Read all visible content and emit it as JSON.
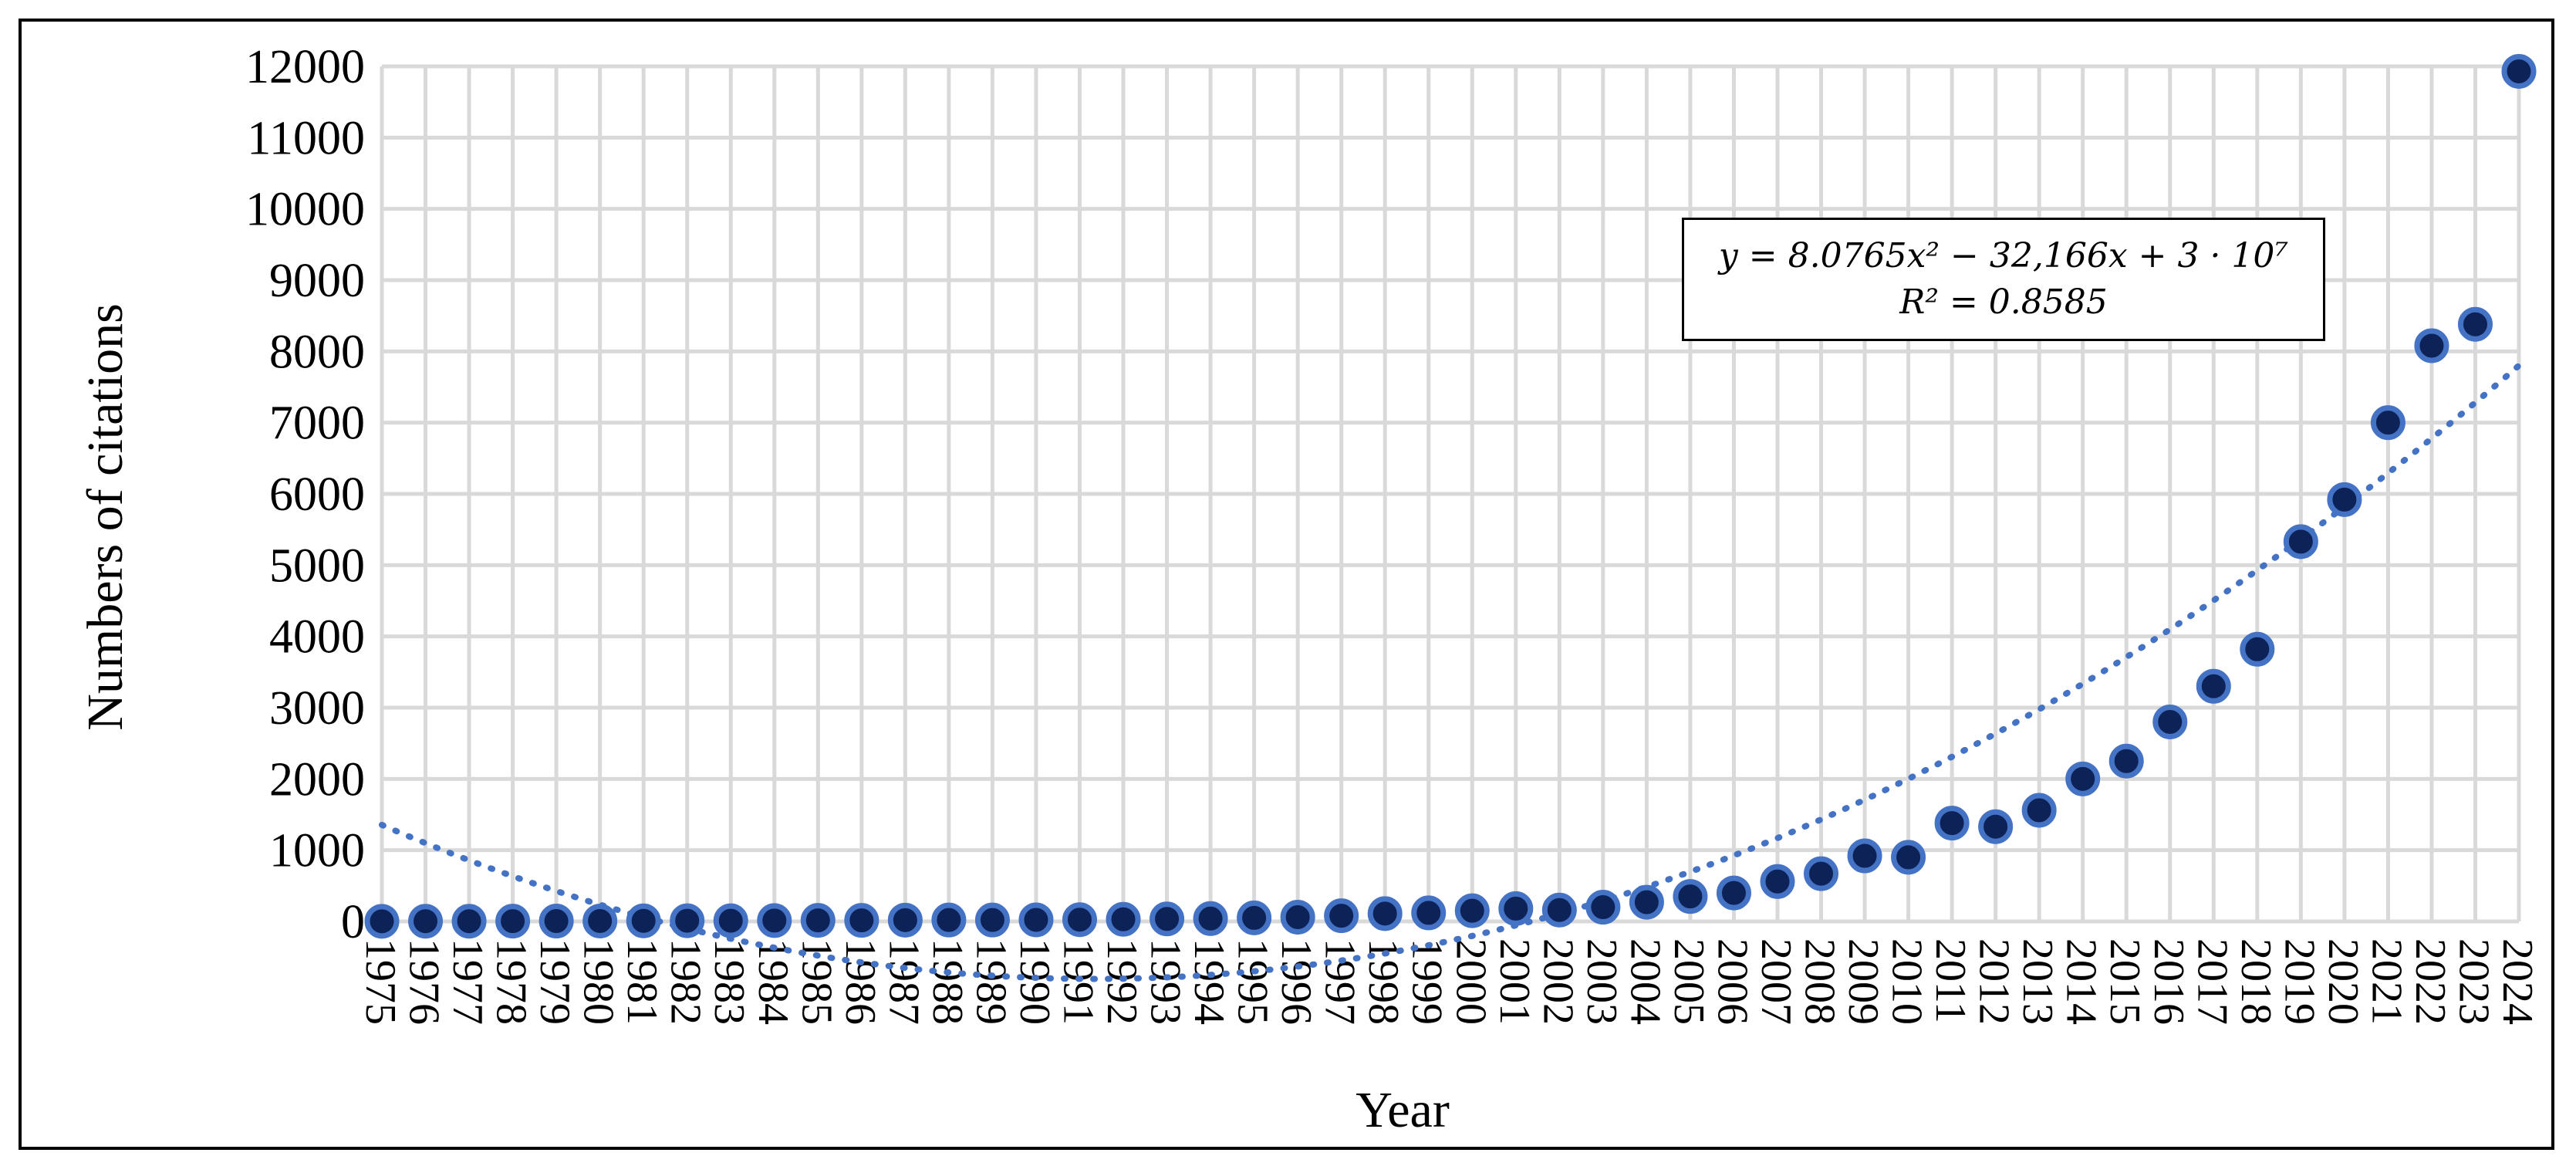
{
  "chart_data": {
    "type": "scatter",
    "xlabel": "Year",
    "ylabel": "Numbers of citations",
    "ylim": [
      0,
      12000
    ],
    "yticks": [
      0,
      1000,
      2000,
      3000,
      4000,
      5000,
      6000,
      7000,
      8000,
      9000,
      10000,
      11000,
      12000
    ],
    "x": [
      "1975",
      "1976",
      "1977",
      "1978",
      "1979",
      "1980",
      "1981",
      "1982",
      "1983",
      "1984",
      "1985",
      "1986",
      "1987",
      "1988",
      "1989",
      "1990",
      "1991",
      "1992",
      "1993",
      "1994",
      "1995",
      "1996",
      "1997",
      "1998",
      "1999",
      "2000",
      "2001",
      "2002",
      "2003",
      "2004",
      "2005",
      "2006",
      "2007",
      "2008",
      "2009",
      "2010",
      "2011",
      "2012",
      "2013",
      "2014",
      "2015",
      "2016",
      "2017",
      "2018",
      "2019",
      "2020",
      "2021",
      "2022",
      "2023",
      "2024"
    ],
    "series": [
      {
        "values": [
          2,
          3,
          3,
          4,
          5,
          6,
          8,
          10,
          10,
          12,
          15,
          15,
          18,
          20,
          20,
          22,
          25,
          30,
          35,
          40,
          50,
          60,
          80,
          110,
          120,
          150,
          180,
          160,
          200,
          270,
          350,
          400,
          560,
          670,
          920,
          900,
          1380,
          1330,
          1560,
          2000,
          2250,
          2800,
          3300,
          3820,
          5330,
          5920,
          7000,
          8080,
          8380,
          11930
        ],
        "color": "#0d2357",
        "edge_color": "#4472c4"
      }
    ],
    "trendline": {
      "type": "polynomial-2",
      "style": "dotted",
      "color": "#4472c4",
      "equation": "y = 8.0765x² − 32,166x + 3 · 10⁷",
      "r_squared": "R² = 0.8585"
    },
    "grid": true,
    "legend": "none"
  }
}
